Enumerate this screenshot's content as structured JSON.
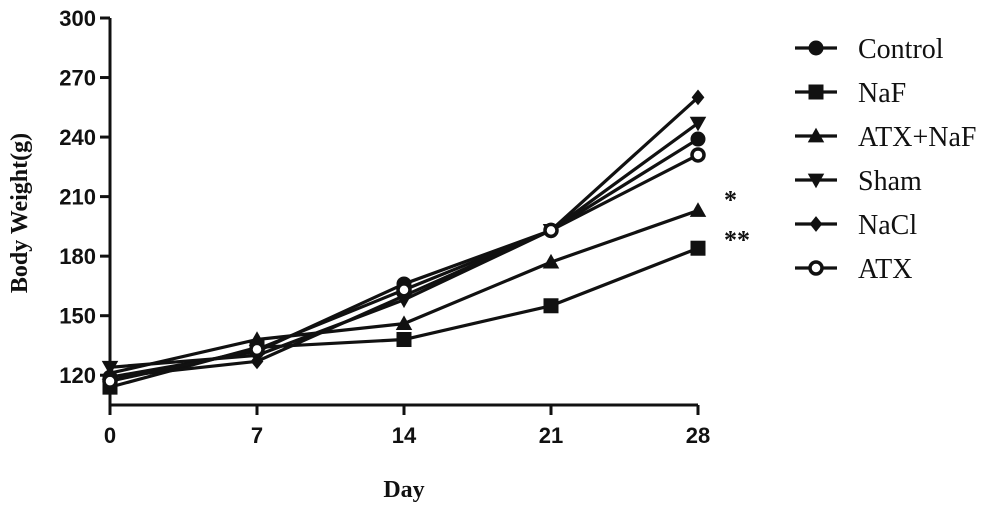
{
  "chart_data": {
    "type": "line",
    "xlabel": "Day",
    "ylabel": "Body Weight(g)",
    "xlim": [
      0,
      28
    ],
    "ylim": [
      105,
      300
    ],
    "x_ticks": [
      0,
      7,
      14,
      21,
      28
    ],
    "y_ticks": [
      120,
      150,
      180,
      210,
      240,
      270,
      300
    ],
    "grid": false,
    "legend_position": "right",
    "x": [
      0,
      7,
      14,
      21,
      28
    ],
    "series": [
      {
        "name": "Control",
        "marker": "circle",
        "values": [
          119,
          132,
          166,
          193,
          239
        ]
      },
      {
        "name": "NaF",
        "marker": "square",
        "values": [
          114,
          134,
          138,
          155,
          184
        ]
      },
      {
        "name": "ATX+NaF",
        "marker": "triangle-up",
        "values": [
          121,
          138,
          146,
          177,
          203
        ]
      },
      {
        "name": "Sham",
        "marker": "triangle-down",
        "values": [
          124,
          130,
          158,
          193,
          247
        ]
      },
      {
        "name": "NaCl",
        "marker": "diamond",
        "values": [
          119,
          127,
          160,
          193,
          260
        ]
      },
      {
        "name": "ATX",
        "marker": "circle-open",
        "values": [
          117,
          133,
          163,
          193,
          231
        ]
      }
    ],
    "annotations": [
      {
        "text": "*",
        "x": 28,
        "y": 208
      },
      {
        "text": "**",
        "x": 28,
        "y": 188
      }
    ],
    "colors": {
      "line": "#111111",
      "background": "#ffffff"
    }
  }
}
